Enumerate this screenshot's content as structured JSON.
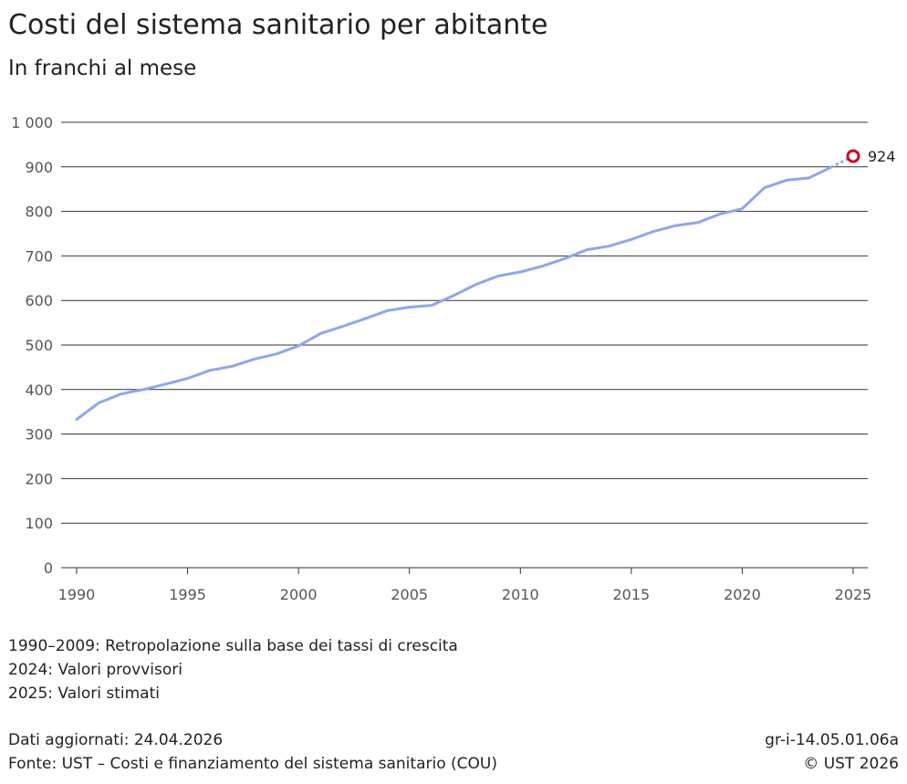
{
  "title": "Costi del sistema sanitario per abitante",
  "subtitle": "In franchi al mese",
  "notes": [
    "1990–2009: Retropolazione sulla base dei tassi di crescita",
    "2024: Valori provvisori",
    "2025: Valori stimati"
  ],
  "footer": {
    "updated": "Dati aggiornati: 24.04.2026",
    "source": "Fonte: UST – Costi e finanziamento del sistema sanitario (COU)",
    "code": "gr-i-14.05.01.06a",
    "copyright": "© UST 2026"
  },
  "colors": {
    "line": "#8ea6ee",
    "highlight": "#d0021b",
    "grid": "#333333"
  },
  "chart_data": {
    "type": "line",
    "x": [
      1990,
      1991,
      1992,
      1993,
      1994,
      1995,
      1996,
      1997,
      1998,
      1999,
      2000,
      2001,
      2002,
      2003,
      2004,
      2005,
      2006,
      2007,
      2008,
      2009,
      2010,
      2011,
      2012,
      2013,
      2014,
      2015,
      2016,
      2017,
      2018,
      2019,
      2020,
      2021,
      2022,
      2023,
      2024,
      2025
    ],
    "series": [
      {
        "values": [
          333,
          370,
          390,
          400,
          412,
          425,
          443,
          452,
          468,
          480,
          498,
          526,
          542,
          559,
          577,
          585,
          589,
          611,
          636,
          655,
          664,
          677,
          694,
          714,
          722,
          737,
          755,
          768,
          775,
          794,
          806,
          853,
          870,
          875,
          899,
          924
        ]
      }
    ],
    "highlight": {
      "x": 2025,
      "value": 924,
      "label": "924"
    },
    "ylim": [
      0,
      1000
    ],
    "xlim": [
      1990,
      2025
    ],
    "y_ticks": [
      0,
      100,
      200,
      300,
      400,
      500,
      600,
      700,
      800,
      900,
      1000
    ],
    "y_tick_labels": [
      "0",
      "100",
      "200",
      "300",
      "400",
      "500",
      "600",
      "700",
      "800",
      "900",
      "1 000"
    ],
    "x_ticks": [
      1990,
      1995,
      2000,
      2005,
      2010,
      2015,
      2020,
      2025
    ],
    "x_tick_labels": [
      "1990",
      "1995",
      "2000",
      "2005",
      "2010",
      "2015",
      "2020",
      "2025"
    ],
    "xlabel": "",
    "ylabel": "",
    "grid": true,
    "legend": "none"
  }
}
